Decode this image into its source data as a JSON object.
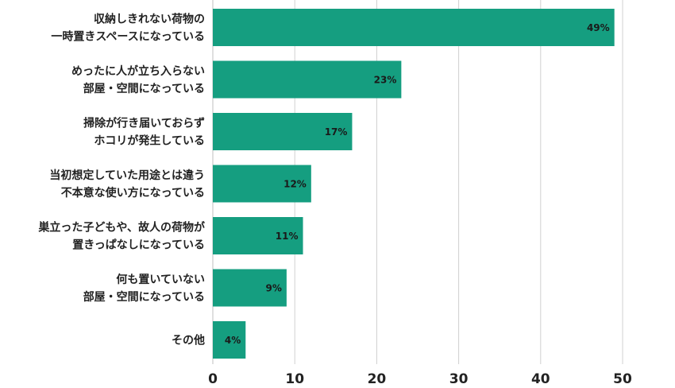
{
  "chart_data": {
    "type": "bar",
    "orientation": "horizontal",
    "title": "",
    "xlabel": "",
    "ylabel": "",
    "xlim": [
      0,
      50
    ],
    "xticks": [
      0,
      10,
      20,
      30,
      40,
      50
    ],
    "grid": true,
    "bar_color": "#159e80",
    "categories": [
      [
        "収納しきれない荷物の",
        "一時置きスペースになっている"
      ],
      [
        "めったに人が立ち入らない",
        "部屋・空間になっている"
      ],
      [
        "掃除が行き届いておらず",
        "ホコリが発生している"
      ],
      [
        "当初想定していた用途とは違う",
        "不本意な使い方になっている"
      ],
      [
        "巣立った子どもや、故人の荷物が",
        "置きっぱなしになっている"
      ],
      [
        "何も置いていない",
        "部屋・空間になっている"
      ],
      [
        "その他"
      ]
    ],
    "values": [
      49,
      23,
      17,
      12,
      11,
      9,
      4
    ],
    "data_labels": [
      "49%",
      "23%",
      "17%",
      "12%",
      "11%",
      "9%",
      "4%"
    ]
  }
}
